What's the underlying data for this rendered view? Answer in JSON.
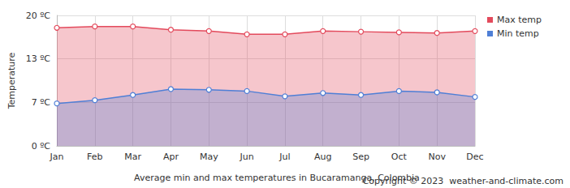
{
  "chart_data": {
    "type": "area",
    "title": "Average min and max temperatures in Bucaramanga, Colombia",
    "annotations": [
      "Copyright © 2023  weather-and-climate.com"
    ],
    "y_label": "Temperature",
    "categories": [
      "Jan",
      "Feb",
      "Mar",
      "Apr",
      "May",
      "Jun",
      "Jul",
      "Aug",
      "Sep",
      "Oct",
      "Nov",
      "Dec"
    ],
    "series": [
      {
        "name": "Max temp",
        "color": "#e34a5c",
        "marker": "circle",
        "values": [
          18.1,
          18.3,
          18.3,
          17.8,
          17.6,
          17.1,
          17.1,
          17.6,
          17.5,
          17.4,
          17.3,
          17.6
        ]
      },
      {
        "name": "Min temp",
        "color": "#4f7fd6",
        "marker": "circle",
        "values": [
          6.5,
          7.0,
          7.8,
          8.7,
          8.6,
          8.4,
          7.6,
          8.1,
          7.8,
          8.4,
          8.2,
          7.5
        ]
      }
    ],
    "ylim": [
      0,
      20
    ],
    "yticks": [
      {
        "value": 0,
        "label": "0 ºC"
      },
      {
        "value": 6.67,
        "label": "7 ºC"
      },
      {
        "value": 13.33,
        "label": "13 ºC"
      },
      {
        "value": 20,
        "label": "20 ºC"
      }
    ],
    "grid": true,
    "legend": "top-right"
  }
}
